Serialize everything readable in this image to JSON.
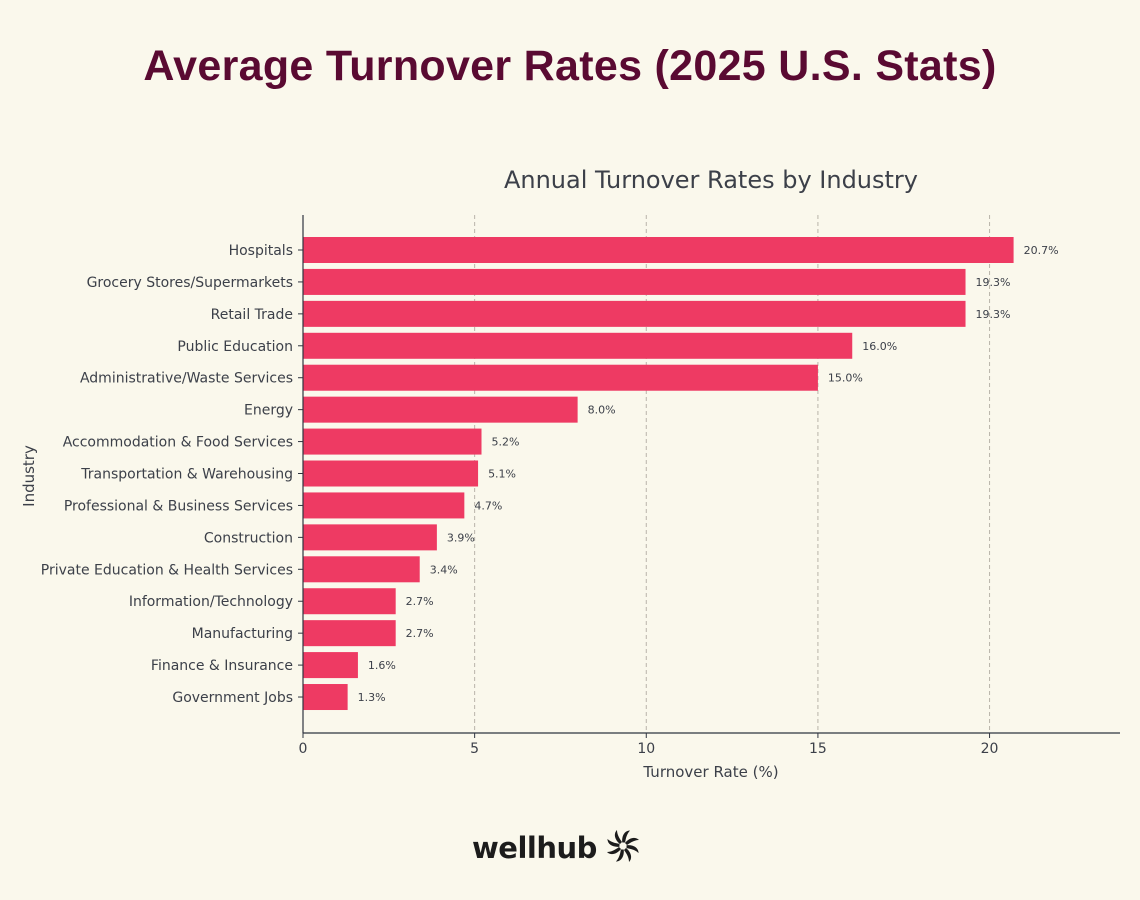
{
  "header": {
    "title": "Average Turnover Rates (2025 U.S. Stats)"
  },
  "chart_data": {
    "type": "bar",
    "orientation": "horizontal",
    "title": "Annual Turnover Rates by Industry",
    "xlabel": "Turnover Rate (%)",
    "ylabel": "Industry",
    "xlim": [
      0,
      23.8
    ],
    "xticks": [
      0,
      5,
      10,
      15,
      20
    ],
    "grid": "x-dashed",
    "bar_color": "#ee3a63",
    "categories": [
      "Hospitals",
      "Grocery Stores/Supermarkets",
      "Retail Trade",
      "Public Education",
      "Administrative/Waste Services",
      "Energy",
      "Accommodation & Food Services",
      "Transportation & Warehousing",
      "Professional & Business Services",
      "Construction",
      "Private Education & Health Services",
      "Information/Technology",
      "Manufacturing",
      "Finance & Insurance",
      "Government Jobs"
    ],
    "values": [
      20.7,
      19.3,
      19.3,
      16.0,
      15.0,
      8.0,
      5.2,
      5.1,
      4.7,
      3.9,
      3.4,
      2.7,
      2.7,
      1.6,
      1.3
    ],
    "value_labels": [
      "20.7%",
      "19.3%",
      "19.3%",
      "16.0%",
      "15.0%",
      "8.0%",
      "5.2%",
      "5.1%",
      "4.7%",
      "3.9%",
      "3.4%",
      "2.7%",
      "2.7%",
      "1.6%",
      "1.3%"
    ]
  },
  "footer": {
    "logo_text": "wellhub",
    "logo_icon": "pinwheel-icon"
  }
}
